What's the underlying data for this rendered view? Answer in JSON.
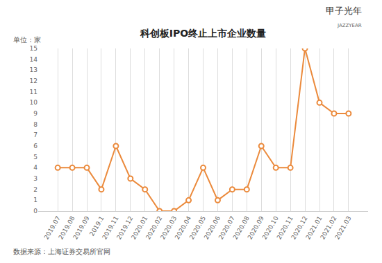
{
  "chart_data": {
    "type": "line",
    "title": "科创板IPO终止上市企业数量",
    "ylabel": "单位：家",
    "annotations": [
      "数据来源：上海证券交易所官网",
      "甲子光年",
      "JAZZYEAR"
    ],
    "categories": [
      "2019.07",
      "2019.08",
      "2019.09",
      "2019.1",
      "2019.11",
      "2019.12",
      "2020.01",
      "2020.02",
      "2020.03",
      "2020.04",
      "2020.05",
      "2020.06",
      "2020.07",
      "2020.08",
      "2020.09",
      "2020.10",
      "2020.11",
      "2020.12",
      "2021.01",
      "2021.02",
      "2021.03"
    ],
    "values": [
      4,
      4,
      4,
      2,
      6,
      3,
      2,
      0,
      0,
      1,
      4,
      1,
      2,
      2,
      6,
      4,
      4,
      15,
      10,
      9,
      9
    ],
    "color": "#eb8a3c",
    "marker": "circle-open",
    "ylim": [
      0,
      15
    ],
    "yticks": [
      0,
      1,
      2,
      3,
      4,
      5,
      6,
      7,
      8,
      9,
      10,
      11,
      12,
      13,
      14,
      15
    ],
    "grid": true
  }
}
